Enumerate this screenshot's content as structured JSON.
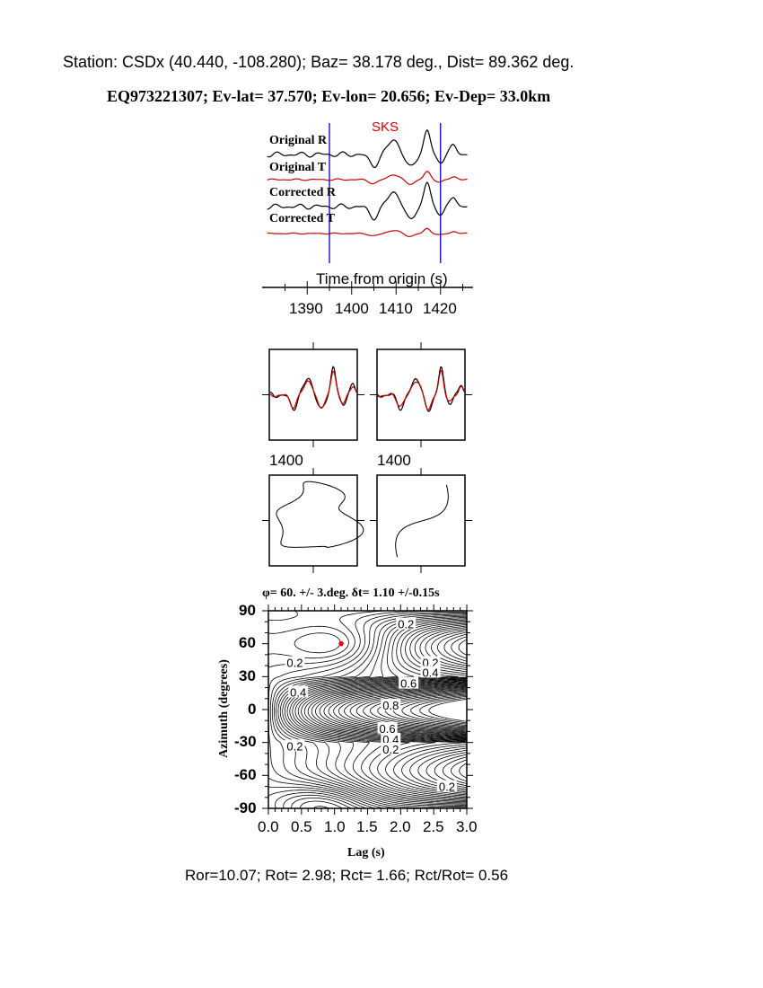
{
  "header": {
    "station_line": "Station: CSDx (40.440, -108.280); Baz=   38.178 deg., Dist=   89.362 deg.",
    "event_line": "EQ973221307; Ev-lat=  37.570; Ev-lon=  20.656; Ev-Dep= 33.0km"
  },
  "chart_data": [
    {
      "type": "line",
      "id": "seismograms",
      "phase_label": "SKS",
      "trace_labels": [
        "Original R",
        "Original T",
        "Corrected R",
        "Corrected T"
      ],
      "xlabel": "Time from origin (s)",
      "xticks": [
        1390,
        1400,
        1410,
        1420
      ],
      "window_markers_s": [
        1395,
        1420
      ],
      "colors": {
        "radial": "#000000",
        "transverse": "#cc0000",
        "window": "#0000cc",
        "phase": "#dd0000"
      }
    },
    {
      "type": "line",
      "id": "waveform-comparison",
      "panels": 2,
      "tick_label": "1400"
    },
    {
      "type": "line",
      "id": "particle-motion",
      "panels": 2
    },
    {
      "type": "contour",
      "id": "splitting-grid",
      "title": "φ= 60. +/- 3.deg. δt= 1.10 +/-0.15s",
      "xlabel": "Lag (s)",
      "ylabel": "Azimuth (degrees)",
      "xlim": [
        0.0,
        3.0
      ],
      "ylim": [
        -90,
        90
      ],
      "xticks": [
        "0.0",
        "0.5",
        "1.0",
        "1.5",
        "2.0",
        "2.5",
        "3.0"
      ],
      "yticks": [
        "90",
        "60",
        "30",
        "0",
        "-30",
        "-60",
        "-90"
      ],
      "best_fit": {
        "lag": 1.1,
        "azimuth": 60,
        "color": "#ee0000"
      },
      "contour_labels": [
        "0.2",
        "0.2",
        "0.2",
        "0.4",
        "0.6",
        "0.4",
        "0.8",
        "0.6",
        "0.4",
        "0.2",
        "0.2",
        "0.2"
      ]
    }
  ],
  "footer": {
    "ratios": "Ror=10.07; Rot= 2.98; Rct= 1.66; Rct/Rot= 0.56"
  }
}
